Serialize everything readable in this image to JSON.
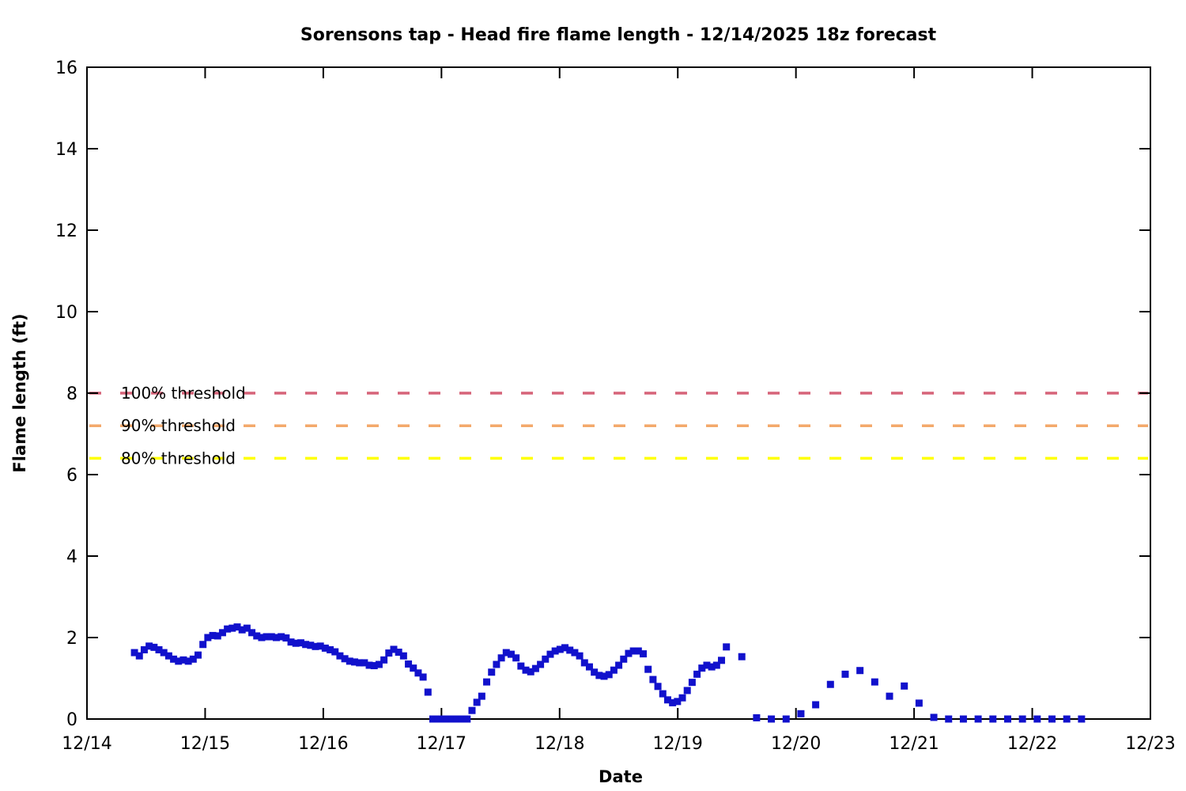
{
  "chart_data": {
    "type": "scatter",
    "title": "Sorensons tap - Head fire flame length - 12/14/2025 18z forecast",
    "xlabel": "Date",
    "ylabel": "Flame length (ft)",
    "x_tick_labels": [
      "12/14",
      "12/15",
      "12/16",
      "12/17",
      "12/18",
      "12/19",
      "12/20",
      "12/21",
      "12/22",
      "12/23"
    ],
    "x_range_days": [
      0,
      9
    ],
    "y_ticks": [
      0,
      2,
      4,
      6,
      8,
      10,
      12,
      14,
      16
    ],
    "ylim": [
      0,
      16
    ],
    "grid": false,
    "legend_position": "none",
    "point_color": "#1111cc",
    "point_shape": "square",
    "thresholds": [
      {
        "label": "100% threshold",
        "value": 8.0,
        "color": "#d66379"
      },
      {
        "label": "90% threshold",
        "value": 7.2,
        "color": "#f3a96b"
      },
      {
        "label": "80% threshold",
        "value": 6.4,
        "color": "#ffff00"
      }
    ],
    "series": [
      {
        "name": "flame-length-hourly",
        "cadence": "hourly",
        "start_day_frac": 0.402,
        "step_day_frac": 0.0414,
        "values": [
          1.63,
          1.55,
          1.7,
          1.79,
          1.76,
          1.7,
          1.63,
          1.55,
          1.47,
          1.42,
          1.45,
          1.42,
          1.47,
          1.57,
          1.83,
          2.0,
          2.05,
          2.04,
          2.12,
          2.21,
          2.23,
          2.26,
          2.19,
          2.23,
          2.12,
          2.04,
          2.0,
          2.02,
          2.02,
          2.0,
          2.02,
          1.99,
          1.89,
          1.86,
          1.87,
          1.83,
          1.81,
          1.78,
          1.79,
          1.74,
          1.7,
          1.65,
          1.55,
          1.48,
          1.42,
          1.4,
          1.38,
          1.38,
          1.32,
          1.31,
          1.34,
          1.45,
          1.62,
          1.71,
          1.64,
          1.55,
          1.35,
          1.25,
          1.13,
          1.03,
          0.66,
          0.0,
          0.0,
          0.0,
          0.0,
          0.0,
          0.0,
          0.0,
          0.0,
          0.21,
          0.41,
          0.56,
          0.91,
          1.15,
          1.34,
          1.5,
          1.63,
          1.59,
          1.5,
          1.3,
          1.2,
          1.16,
          1.24,
          1.34,
          1.47,
          1.59,
          1.67,
          1.71,
          1.75,
          1.69,
          1.63,
          1.55,
          1.38,
          1.28,
          1.15,
          1.07,
          1.05,
          1.09,
          1.2,
          1.32,
          1.47,
          1.61,
          1.67,
          1.67,
          1.6,
          1.22,
          0.97,
          0.8,
          0.62,
          0.47,
          0.4,
          0.43,
          0.52,
          0.7,
          0.9,
          1.1,
          1.25,
          1.32,
          1.28,
          1.32,
          1.44,
          1.77
        ]
      },
      {
        "name": "flame-length-3hourly",
        "cadence": "3-hourly",
        "start_day_frac": 5.542,
        "step_day_frac": 0.125,
        "values": [
          1.53,
          0.03,
          0.0,
          0.0,
          0.13,
          0.35,
          0.85,
          1.1,
          1.19,
          0.91,
          0.56,
          0.81,
          0.39,
          0.04,
          0.0,
          0.0,
          0.0,
          0.0,
          0.0,
          0.0,
          0.0,
          0.0,
          0.0,
          0.0
        ]
      }
    ]
  }
}
